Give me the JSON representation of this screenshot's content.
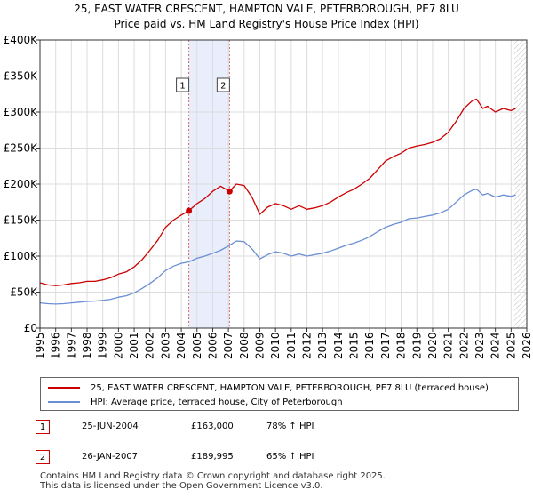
{
  "chart_data": {
    "type": "line",
    "title": "25, EAST WATER CRESCENT, HAMPTON VALE, PETERBOROUGH, PE7 8LU",
    "subtitle": "Price paid vs. HM Land Registry's House Price Index (HPI)",
    "xlim": [
      1995,
      2026
    ],
    "ylim": [
      0,
      400000
    ],
    "y_ticks": [
      0,
      50000,
      100000,
      150000,
      200000,
      250000,
      300000,
      350000,
      400000
    ],
    "y_tick_labels": [
      "£0",
      "£50K",
      "£100K",
      "£150K",
      "£200K",
      "£250K",
      "£300K",
      "£350K",
      "£400K"
    ],
    "x_ticks": [
      1995,
      1996,
      1997,
      1998,
      1999,
      2000,
      2001,
      2002,
      2003,
      2004,
      2005,
      2006,
      2007,
      2008,
      2009,
      2010,
      2011,
      2012,
      2013,
      2014,
      2015,
      2016,
      2017,
      2018,
      2019,
      2020,
      2021,
      2022,
      2023,
      2024,
      2025,
      2026
    ],
    "x_tick_labels": [
      "1995",
      "1996",
      "1997",
      "1998",
      "1999",
      "2000",
      "2001",
      "2002",
      "2003",
      "2004",
      "2005",
      "2006",
      "2007",
      "2008",
      "2009",
      "2010",
      "2011",
      "2012",
      "2013",
      "2014",
      "2015",
      "2016",
      "2017",
      "2018",
      "2019",
      "2020",
      "2021",
      "2022",
      "2023",
      "2024",
      "2025",
      "2026"
    ],
    "grid": true,
    "shaded_period": [
      2004.48,
      2007.07
    ],
    "hatched_from": 2025.2,
    "series": [
      {
        "name": "25, EAST WATER CRESCENT, HAMPTON VALE, PETERBOROUGH, PE7 8LU (terraced house)",
        "color": "#cc0000",
        "x": [
          1995.0,
          1995.5,
          1996.0,
          1996.5,
          1997.0,
          1997.5,
          1998.0,
          1998.5,
          1999.0,
          1999.5,
          2000.0,
          2000.5,
          2001.0,
          2001.5,
          2002.0,
          2002.5,
          2003.0,
          2003.5,
          2004.0,
          2004.48,
          2005.0,
          2005.5,
          2006.0,
          2006.5,
          2007.07,
          2007.5,
          2008.0,
          2008.5,
          2009.0,
          2009.5,
          2010.0,
          2010.5,
          2011.0,
          2011.5,
          2012.0,
          2012.5,
          2013.0,
          2013.5,
          2014.0,
          2014.5,
          2015.0,
          2015.5,
          2016.0,
          2016.5,
          2017.0,
          2017.5,
          2018.0,
          2018.5,
          2019.0,
          2019.5,
          2020.0,
          2020.5,
          2021.0,
          2021.5,
          2022.0,
          2022.5,
          2022.8,
          2023.2,
          2023.5,
          2024.0,
          2024.5,
          2025.0,
          2025.3
        ],
        "values": [
          63000,
          60000,
          59000,
          60000,
          62000,
          63000,
          65000,
          65000,
          67000,
          70000,
          75000,
          78000,
          85000,
          95000,
          108000,
          122000,
          140000,
          150000,
          157000,
          163000,
          173000,
          180000,
          190000,
          197000,
          189995,
          200000,
          198000,
          182000,
          158000,
          168000,
          173000,
          170000,
          165000,
          170000,
          165000,
          167000,
          170000,
          175000,
          182000,
          188000,
          193000,
          200000,
          208000,
          220000,
          232000,
          238000,
          243000,
          250000,
          253000,
          255000,
          258000,
          263000,
          272000,
          287000,
          305000,
          315000,
          318000,
          305000,
          308000,
          300000,
          305000,
          302000,
          305000
        ]
      },
      {
        "name": "HPI: Average price, terraced house, City of Peterborough",
        "color": "#6b8fd4",
        "x": [
          1995.0,
          1995.5,
          1996.0,
          1996.5,
          1997.0,
          1997.5,
          1998.0,
          1998.5,
          1999.0,
          1999.5,
          2000.0,
          2000.5,
          2001.0,
          2001.5,
          2002.0,
          2002.5,
          2003.0,
          2003.5,
          2004.0,
          2004.48,
          2005.0,
          2005.5,
          2006.0,
          2006.5,
          2007.07,
          2007.5,
          2008.0,
          2008.5,
          2009.0,
          2009.5,
          2010.0,
          2010.5,
          2011.0,
          2011.5,
          2012.0,
          2012.5,
          2013.0,
          2013.5,
          2014.0,
          2014.5,
          2015.0,
          2015.5,
          2016.0,
          2016.5,
          2017.0,
          2017.5,
          2018.0,
          2018.5,
          2019.0,
          2019.5,
          2020.0,
          2020.5,
          2021.0,
          2021.5,
          2022.0,
          2022.5,
          2022.8,
          2023.2,
          2023.5,
          2024.0,
          2024.5,
          2025.0,
          2025.3
        ],
        "values": [
          35000,
          34000,
          33500,
          34000,
          35000,
          36000,
          37000,
          37500,
          38500,
          40000,
          43000,
          45000,
          49000,
          55000,
          62000,
          70000,
          80000,
          86000,
          90000,
          92000,
          97000,
          100000,
          104000,
          108000,
          115000,
          121000,
          120000,
          110000,
          96000,
          102000,
          106000,
          104000,
          100000,
          103000,
          100000,
          102000,
          104000,
          107000,
          111000,
          115000,
          118000,
          122000,
          127000,
          134000,
          140000,
          144000,
          147000,
          152000,
          153000,
          155000,
          157000,
          160000,
          165000,
          175000,
          185000,
          191000,
          193000,
          185000,
          187000,
          182000,
          185000,
          183000,
          185000
        ]
      }
    ],
    "sales": [
      {
        "label": "1",
        "year": 2004.48,
        "price": 163000
      },
      {
        "label": "2",
        "year": 2007.07,
        "price": 189995
      }
    ]
  },
  "legend": {
    "property_label": "25, EAST WATER CRESCENT, HAMPTON VALE, PETERBOROUGH, PE7 8LU (terraced house)",
    "hpi_label": "HPI: Average price, terraced house, City of Peterborough"
  },
  "sales_table": [
    {
      "num": "1",
      "date": "25-JUN-2004",
      "price": "£163,000",
      "hpi": "78% ↑ HPI"
    },
    {
      "num": "2",
      "date": "26-JAN-2007",
      "price": "£189,995",
      "hpi": "65% ↑ HPI"
    }
  ],
  "footer": {
    "line1": "Contains HM Land Registry data © Crown copyright and database right 2025.",
    "line2": "This data is licensed under the Open Government Licence v3.0."
  }
}
